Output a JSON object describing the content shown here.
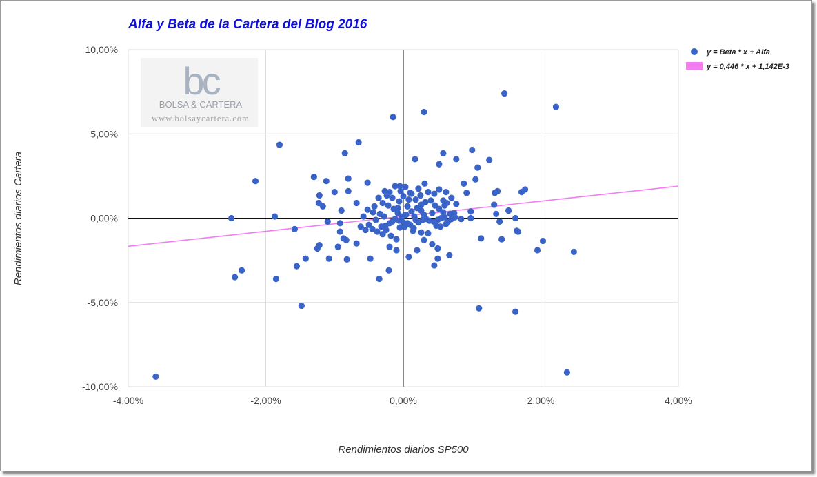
{
  "colors": {
    "points": "#3a63c8",
    "trend": "#f27cf0",
    "title": "#1010dd",
    "grid": "#dddddd",
    "axis": "#111111"
  },
  "watermark": {
    "logo": "bc",
    "name": "BOLSA & CARTERA",
    "url": "www.bolsaycartera.com"
  },
  "chart_data": {
    "type": "scatter",
    "title": "Alfa y Beta de la Cartera del Blog 2016",
    "xlabel": "Rendimientos diarios SP500",
    "ylabel": "Rendimientos diarios Cartera",
    "xlim": [
      -4,
      4
    ],
    "ylim": [
      -10,
      10
    ],
    "x_ticks": [
      "-4,00%",
      "-2,00%",
      "0,00%",
      "2,00%",
      "4,00%"
    ],
    "y_ticks": [
      "10,00%",
      "5,00%",
      "0,00%",
      "-5,00%",
      "-10,00%"
    ],
    "grid": true,
    "legend_position": "top-right",
    "series": [
      {
        "name": "y = Beta * x + Alfa",
        "kind": "points",
        "points": [
          [
            -3.6,
            -9.4
          ],
          [
            2.38,
            -9.15
          ],
          [
            1.47,
            7.4
          ],
          [
            2.22,
            6.6
          ],
          [
            0.3,
            6.3
          ],
          [
            -0.15,
            6.0
          ],
          [
            -0.65,
            4.5
          ],
          [
            -1.8,
            4.35
          ],
          [
            -0.85,
            3.85
          ],
          [
            1.0,
            4.05
          ],
          [
            0.58,
            3.85
          ],
          [
            0.17,
            3.5
          ],
          [
            0.77,
            3.5
          ],
          [
            1.25,
            3.45
          ],
          [
            0.52,
            3.2
          ],
          [
            1.08,
            3.0
          ],
          [
            -1.3,
            2.45
          ],
          [
            -2.15,
            2.2
          ],
          [
            -0.8,
            2.35
          ],
          [
            -1.12,
            2.2
          ],
          [
            1.05,
            2.3
          ],
          [
            0.88,
            2.05
          ],
          [
            -0.52,
            2.1
          ],
          [
            0.31,
            2.05
          ],
          [
            -1.22,
            1.35
          ],
          [
            -1.0,
            1.55
          ],
          [
            -0.8,
            1.6
          ],
          [
            1.37,
            1.6
          ],
          [
            1.77,
            1.7
          ],
          [
            1.72,
            1.55
          ],
          [
            0.92,
            1.5
          ],
          [
            1.33,
            1.5
          ],
          [
            -1.23,
            0.9
          ],
          [
            -1.17,
            0.7
          ],
          [
            -0.9,
            0.45
          ],
          [
            -0.68,
            0.9
          ],
          [
            -2.5,
            0.0
          ],
          [
            -1.87,
            0.1
          ],
          [
            -1.58,
            -0.65
          ],
          [
            -1.1,
            -0.2
          ],
          [
            -0.92,
            -0.3
          ],
          [
            -0.92,
            -0.8
          ],
          [
            -0.87,
            -1.2
          ],
          [
            -0.83,
            -1.3
          ],
          [
            -0.95,
            -1.7
          ],
          [
            -0.68,
            -1.5
          ],
          [
            -1.22,
            -1.6
          ],
          [
            -1.25,
            -1.8
          ],
          [
            -0.82,
            -2.45
          ],
          [
            -1.08,
            -2.4
          ],
          [
            -1.42,
            -2.4
          ],
          [
            -1.55,
            -2.85
          ],
          [
            -2.35,
            -3.1
          ],
          [
            -2.45,
            -3.5
          ],
          [
            -1.85,
            -3.6
          ],
          [
            -1.48,
            -5.2
          ],
          [
            -0.48,
            -2.4
          ],
          [
            -0.35,
            -3.6
          ],
          [
            -0.21,
            -3.1
          ],
          [
            -0.1,
            -1.9
          ],
          [
            -0.2,
            -1.7
          ],
          [
            0.08,
            -2.3
          ],
          [
            0.2,
            -1.9
          ],
          [
            0.45,
            -2.8
          ],
          [
            0.5,
            -2.4
          ],
          [
            0.67,
            -2.2
          ],
          [
            0.42,
            -1.55
          ],
          [
            0.5,
            -1.8
          ],
          [
            0.3,
            -1.3
          ],
          [
            1.1,
            -5.35
          ],
          [
            1.63,
            -5.55
          ],
          [
            1.13,
            -1.2
          ],
          [
            1.43,
            -1.25
          ],
          [
            1.95,
            -1.9
          ],
          [
            2.03,
            -1.35
          ],
          [
            2.48,
            -2.0
          ],
          [
            1.65,
            -0.75
          ],
          [
            1.67,
            -0.8
          ],
          [
            1.63,
            0.0
          ],
          [
            1.4,
            -0.2
          ],
          [
            1.35,
            0.25
          ],
          [
            1.53,
            0.45
          ],
          [
            0.98,
            0.0
          ],
          [
            0.98,
            0.4
          ],
          [
            0.84,
            -0.05
          ],
          [
            1.32,
            0.8
          ],
          [
            0.77,
            0.85
          ],
          [
            0.63,
            0.9
          ],
          [
            0.7,
            1.2
          ],
          [
            0.58,
            1.05
          ],
          [
            0.45,
            1.45
          ],
          [
            0.36,
            1.55
          ],
          [
            0.25,
            1.35
          ],
          [
            0.18,
            1.1
          ],
          [
            0.1,
            1.5
          ],
          [
            0.03,
            1.85
          ],
          [
            -0.05,
            1.9
          ],
          [
            -0.12,
            1.9
          ],
          [
            -0.2,
            1.55
          ],
          [
            -0.27,
            1.6
          ],
          [
            -0.36,
            1.2
          ],
          [
            -0.42,
            0.7
          ],
          [
            -0.52,
            0.5
          ],
          [
            -0.58,
            0.1
          ],
          [
            -0.5,
            -0.4
          ],
          [
            -0.62,
            -0.5
          ],
          [
            -0.55,
            -0.7
          ],
          [
            -0.45,
            -0.65
          ],
          [
            -0.38,
            -0.8
          ],
          [
            -0.3,
            -0.95
          ],
          [
            -0.25,
            -0.7
          ],
          [
            -0.18,
            -1.05
          ],
          [
            -0.1,
            -1.25
          ],
          [
            -0.05,
            -0.55
          ],
          [
            0.02,
            -0.5
          ],
          [
            0.06,
            -0.3
          ],
          [
            0.1,
            -0.4
          ],
          [
            0.15,
            -0.6
          ],
          [
            0.22,
            -0.25
          ],
          [
            0.28,
            -0.1
          ],
          [
            0.33,
            -0.05
          ],
          [
            0.38,
            -0.15
          ],
          [
            0.44,
            -0.2
          ],
          [
            0.5,
            -0.1
          ],
          [
            0.55,
            0.0
          ],
          [
            0.6,
            0.05
          ],
          [
            0.65,
            -0.2
          ],
          [
            0.7,
            -0.05
          ],
          [
            0.75,
            0.05
          ],
          [
            0.36,
            -0.9
          ],
          [
            0.26,
            -0.85
          ],
          [
            0.14,
            -0.75
          ],
          [
            -0.02,
            0.1
          ],
          [
            0.04,
            0.2
          ],
          [
            -0.08,
            0.3
          ],
          [
            0.12,
            0.4
          ],
          [
            -0.14,
            0.55
          ],
          [
            0.2,
            0.6
          ],
          [
            -0.22,
            0.75
          ],
          [
            0.26,
            0.8
          ],
          [
            -0.3,
            0.9
          ],
          [
            0.32,
            0.95
          ],
          [
            -0.06,
            1.0
          ],
          [
            0.08,
            1.1
          ],
          [
            -0.16,
            1.2
          ],
          [
            0.0,
            1.3
          ],
          [
            0.12,
            1.45
          ],
          [
            -0.24,
            1.35
          ],
          [
            0.4,
            1.05
          ],
          [
            0.46,
            0.75
          ],
          [
            0.52,
            0.55
          ],
          [
            0.58,
            0.35
          ],
          [
            0.42,
            0.3
          ],
          [
            0.3,
            0.2
          ],
          [
            0.16,
            0.1
          ],
          [
            -0.28,
            0.1
          ],
          [
            -0.34,
            0.25
          ],
          [
            -0.4,
            -0.1
          ],
          [
            -0.44,
            0.35
          ],
          [
            -0.06,
            -0.15
          ],
          [
            -0.12,
            -0.05
          ],
          [
            0.0,
            -0.25
          ],
          [
            -0.2,
            -0.3
          ],
          [
            -0.26,
            -0.45
          ],
          [
            -0.32,
            -0.5
          ],
          [
            0.48,
            -0.45
          ],
          [
            0.54,
            -0.5
          ],
          [
            0.62,
            -0.35
          ],
          [
            0.68,
            0.25
          ],
          [
            0.74,
            0.3
          ],
          [
            -0.08,
            0.6
          ],
          [
            0.06,
            0.7
          ],
          [
            -0.04,
            1.6
          ],
          [
            0.22,
            1.75
          ],
          [
            0.52,
            1.7
          ],
          [
            0.62,
            1.55
          ],
          [
            0.6,
            0.75
          ],
          [
            -0.16,
            -0.2
          ],
          [
            0.18,
            -0.1
          ],
          [
            0.26,
            0.45
          ]
        ]
      },
      {
        "name": "y = 0,446 * x + 1,142E-3",
        "kind": "line",
        "slope": 0.446,
        "intercept": 0.1142
      }
    ]
  }
}
